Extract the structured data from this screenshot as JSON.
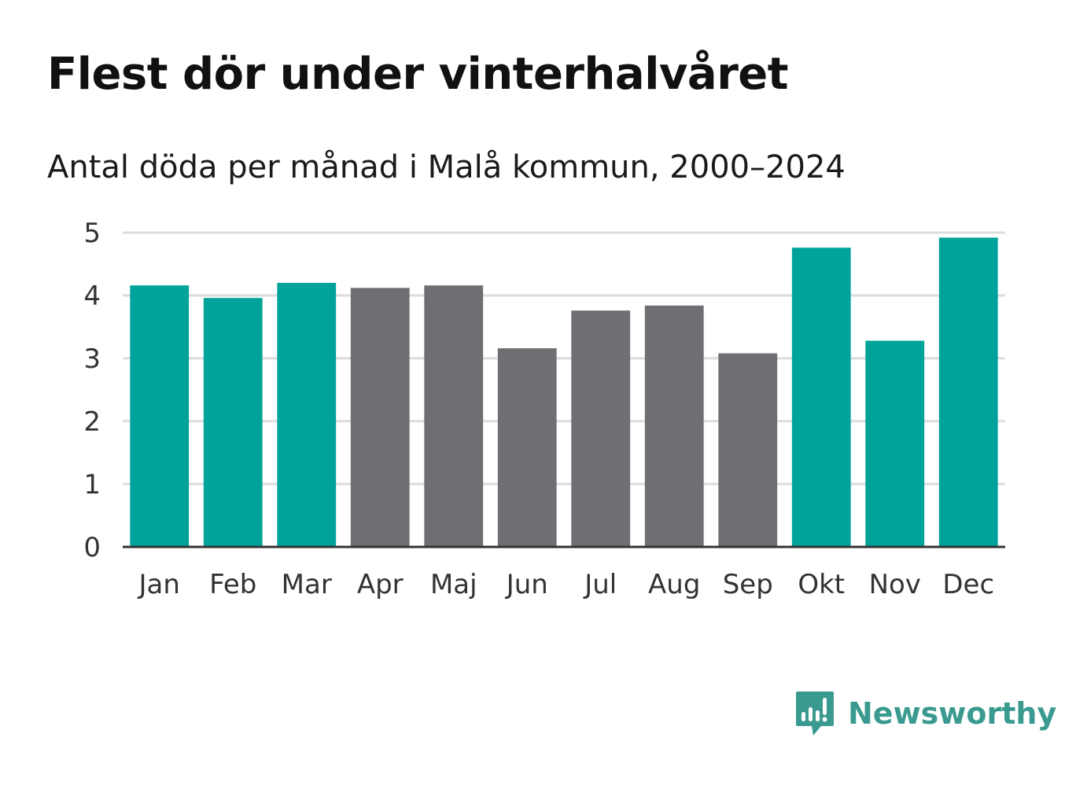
{
  "title": "Flest dör under vinterhalvåret",
  "subtitle": "Antal döda per månad i Malå kommun, 2000–2024",
  "brand": {
    "name": "Newsworthy",
    "icon": "newsworthy-chart-bubble-icon",
    "color": "#3a9a90"
  },
  "colors": {
    "highlight": "#00a39a",
    "normal": "#6f6e73",
    "grid": "#dcdcdc",
    "axis": "#333333",
    "label": "#333333"
  },
  "chart_data": {
    "type": "bar",
    "title": "Flest dör under vinterhalvåret",
    "subtitle": "Antal döda per månad i Malå kommun, 2000–2024",
    "xlabel": "",
    "ylabel": "",
    "ylim": [
      0,
      5
    ],
    "yticks": [
      0,
      1,
      2,
      3,
      4,
      5
    ],
    "grid": true,
    "categories": [
      "Jan",
      "Feb",
      "Mar",
      "Apr",
      "Maj",
      "Jun",
      "Jul",
      "Aug",
      "Sep",
      "Okt",
      "Nov",
      "Dec"
    ],
    "values": [
      4.16,
      3.96,
      4.2,
      4.12,
      4.16,
      3.16,
      3.76,
      3.84,
      3.08,
      4.76,
      3.28,
      4.92
    ],
    "highlight": [
      true,
      true,
      true,
      false,
      false,
      false,
      false,
      false,
      false,
      true,
      true,
      true
    ]
  }
}
